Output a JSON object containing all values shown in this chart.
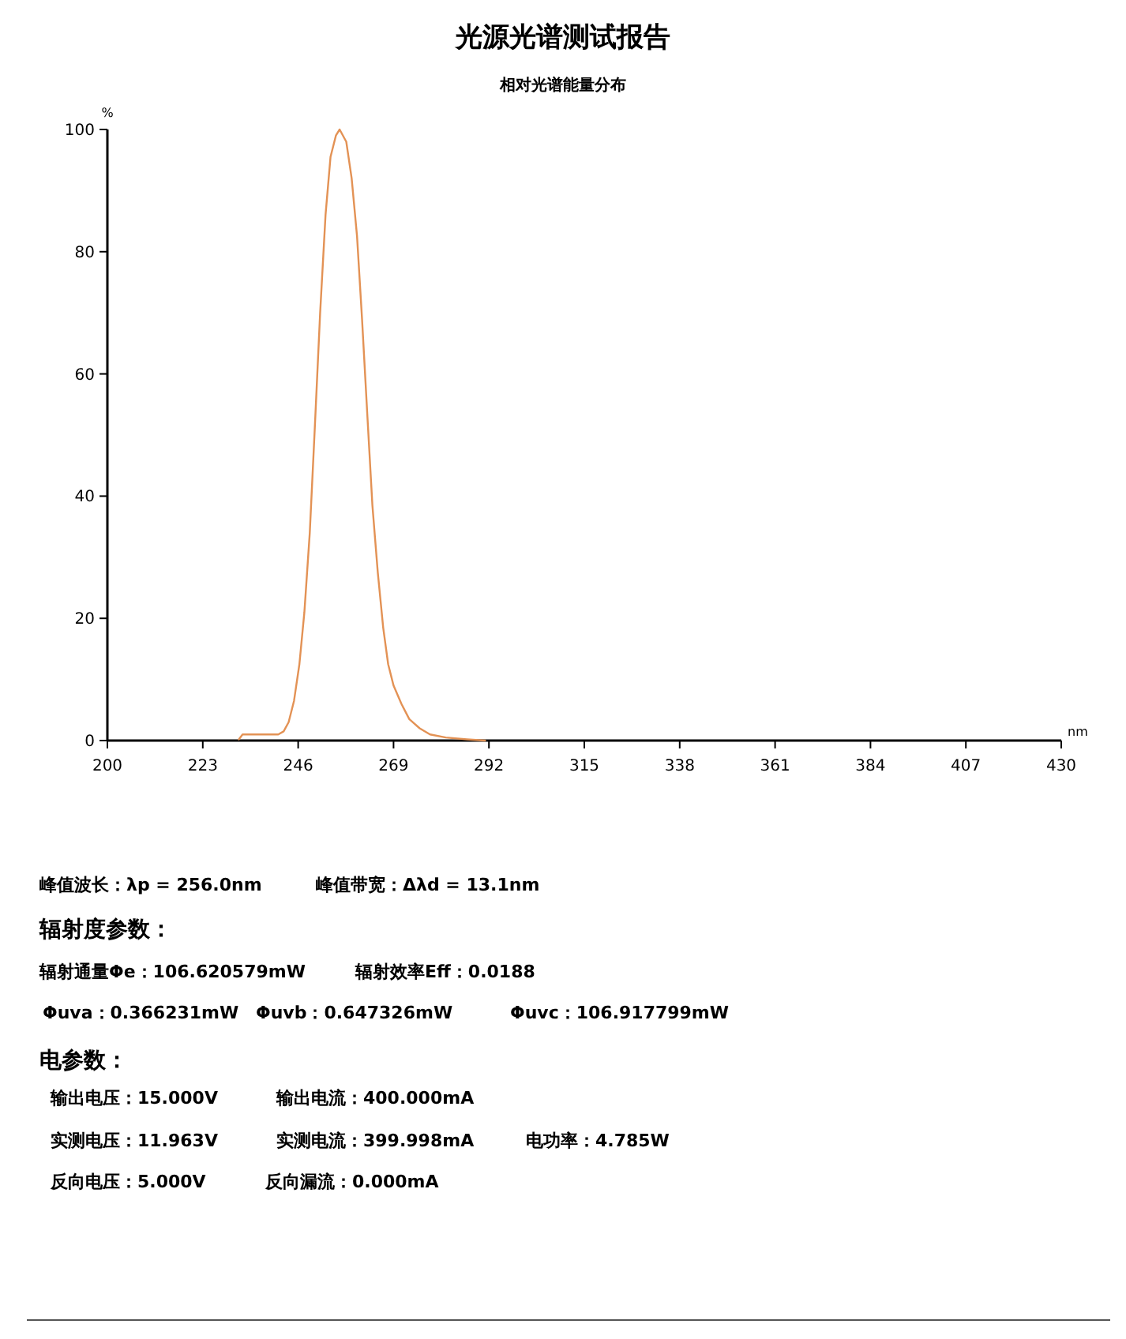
{
  "chart_data": {
    "type": "line",
    "title": "光源光谱测试报告",
    "subtitle": "相对光谱能量分布",
    "xlabel": "nm",
    "ylabel": "%",
    "x": [
      231.7,
      232.6,
      234.9,
      241.2,
      242.5,
      243.7,
      245.0,
      246.3,
      247.5,
      248.8,
      250.0,
      251.3,
      252.6,
      253.8,
      255.1,
      256.0,
      257.6,
      258.9,
      260.2,
      261.4,
      262.7,
      263.9,
      265.2,
      266.5,
      267.7,
      269.0,
      270.9,
      272.8,
      275.3,
      277.8,
      281.6,
      286.7,
      291.1
    ],
    "series": [
      {
        "color": "#e39255",
        "values": [
          0.2,
          1,
          1,
          1,
          1.5,
          3,
          6.5,
          12.5,
          21,
          34,
          51,
          70,
          86,
          95.5,
          99,
          100,
          98,
          92,
          82.5,
          69,
          53,
          38.5,
          27.5,
          18.5,
          12.5,
          9,
          6,
          3.5,
          2,
          1,
          0.5,
          0.2,
          0
        ]
      }
    ],
    "xlim": [
      200,
      430
    ],
    "ylim": [
      0,
      100
    ],
    "xticks": [
      200,
      223,
      246,
      269,
      292,
      315,
      338,
      361,
      384,
      407,
      430
    ],
    "yticks": [
      0,
      20,
      40,
      60,
      80,
      100
    ],
    "annotations": [
      "峰值波长：λp = 256.0nm",
      "峰值带宽：Δλd = 13.1nm",
      "辐射度参数：",
      "辐射通量Φe：106.620579mW",
      "辐射效率Eff：0.0188",
      "Φuva：0.366231mW",
      "Φuvb：0.647326mW",
      "Φuvc：106.917799mW",
      "电参数：",
      "输出电压：15.000V",
      "输出电流：400.000mA",
      "实测电压：11.963V",
      "实测电流：399.998mA",
      "电功率：4.785W",
      "反向电压：5.000V",
      "反向漏流：0.000mA"
    ]
  }
}
